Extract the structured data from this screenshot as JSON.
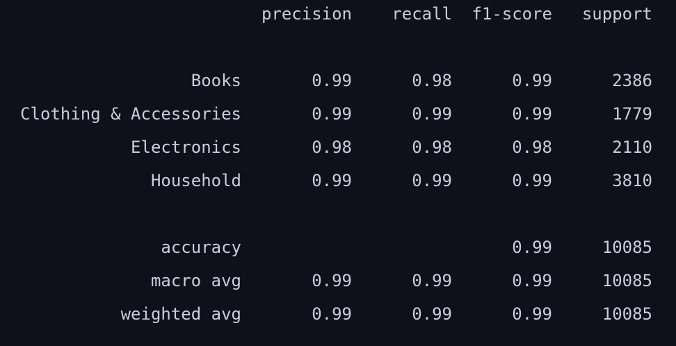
{
  "header": {
    "precision": "precision",
    "recall": "recall",
    "f1_score": "f1-score",
    "support": "support"
  },
  "classes": [
    {
      "label": "Books",
      "precision": "0.99",
      "recall": "0.98",
      "f1_score": "0.99",
      "support": "2386"
    },
    {
      "label": "Clothing & Accessories",
      "precision": "0.99",
      "recall": "0.99",
      "f1_score": "0.99",
      "support": "1779"
    },
    {
      "label": "Electronics",
      "precision": "0.98",
      "recall": "0.98",
      "f1_score": "0.98",
      "support": "2110"
    },
    {
      "label": "Household",
      "precision": "0.99",
      "recall": "0.99",
      "f1_score": "0.99",
      "support": "3810"
    }
  ],
  "summary": {
    "accuracy": {
      "label": "accuracy",
      "f1_score": "0.99",
      "support": "10085"
    },
    "macro_avg": {
      "label": "macro avg",
      "precision": "0.99",
      "recall": "0.99",
      "f1_score": "0.99",
      "support": "10085"
    },
    "weighted_avg": {
      "label": "weighted avg",
      "precision": "0.99",
      "recall": "0.99",
      "f1_score": "0.99",
      "support": "10085"
    }
  },
  "colors": {
    "background": "#0e111a",
    "text": "#c9ceda"
  }
}
